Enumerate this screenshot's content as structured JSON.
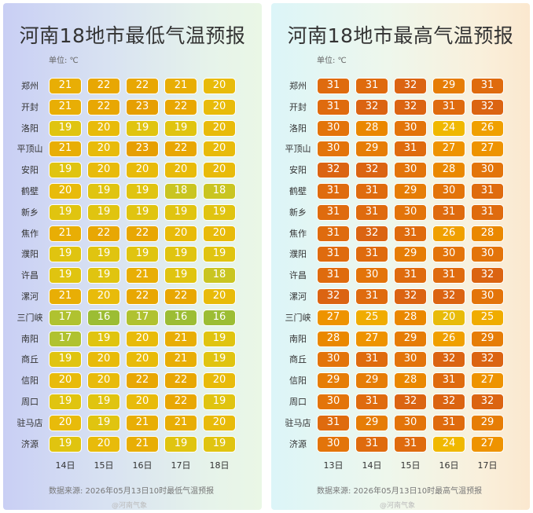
{
  "chart_data": [
    {
      "type": "table",
      "title": "河南18地市最低气温预报",
      "unit_label": "单位: ℃",
      "rows": [
        "郑州",
        "开封",
        "洛阳",
        "平顶山",
        "安阳",
        "鹤壁",
        "新乡",
        "焦作",
        "濮阳",
        "许昌",
        "漯河",
        "三门峡",
        "南阳",
        "商丘",
        "信阳",
        "周口",
        "驻马店",
        "济源"
      ],
      "columns": [
        "14日",
        "15日",
        "16日",
        "17日",
        "18日"
      ],
      "values": [
        [
          21,
          22,
          22,
          21,
          20
        ],
        [
          21,
          22,
          23,
          22,
          20
        ],
        [
          19,
          20,
          19,
          19,
          20
        ],
        [
          21,
          20,
          23,
          22,
          20
        ],
        [
          19,
          20,
          20,
          20,
          20
        ],
        [
          20,
          19,
          19,
          18,
          18
        ],
        [
          19,
          19,
          19,
          19,
          19
        ],
        [
          21,
          22,
          22,
          20,
          20
        ],
        [
          19,
          19,
          19,
          19,
          19
        ],
        [
          19,
          19,
          21,
          19,
          18
        ],
        [
          21,
          20,
          22,
          22,
          20
        ],
        [
          17,
          16,
          17,
          16,
          16
        ],
        [
          17,
          19,
          20,
          21,
          19
        ],
        [
          19,
          20,
          20,
          21,
          19
        ],
        [
          20,
          20,
          22,
          22,
          20
        ],
        [
          19,
          19,
          20,
          22,
          19
        ],
        [
          20,
          19,
          21,
          21,
          20
        ],
        [
          19,
          20,
          21,
          19,
          19
        ]
      ],
      "source": "数据来源: 2026年05月13日10时最低气温预报"
    },
    {
      "type": "table",
      "title": "河南18地市最高气温预报",
      "unit_label": "单位: ℃",
      "rows": [
        "郑州",
        "开封",
        "洛阳",
        "平顶山",
        "安阳",
        "鹤壁",
        "新乡",
        "焦作",
        "濮阳",
        "许昌",
        "漯河",
        "三门峡",
        "南阳",
        "商丘",
        "信阳",
        "周口",
        "驻马店",
        "济源"
      ],
      "columns": [
        "13日",
        "14日",
        "15日",
        "16日",
        "17日"
      ],
      "values": [
        [
          31,
          31,
          32,
          29,
          31
        ],
        [
          31,
          32,
          32,
          31,
          32
        ],
        [
          30,
          28,
          30,
          24,
          26
        ],
        [
          30,
          29,
          31,
          27,
          27
        ],
        [
          32,
          32,
          30,
          28,
          30
        ],
        [
          31,
          31,
          29,
          30,
          31
        ],
        [
          31,
          31,
          30,
          31,
          31
        ],
        [
          31,
          32,
          31,
          26,
          28
        ],
        [
          31,
          31,
          29,
          30,
          30
        ],
        [
          31,
          30,
          31,
          31,
          32
        ],
        [
          32,
          31,
          32,
          32,
          30
        ],
        [
          27,
          25,
          28,
          20,
          25
        ],
        [
          28,
          27,
          29,
          26,
          29
        ],
        [
          30,
          31,
          30,
          32,
          32
        ],
        [
          29,
          29,
          28,
          31,
          27
        ],
        [
          30,
          31,
          32,
          32,
          32
        ],
        [
          31,
          29,
          30,
          31,
          29
        ],
        [
          30,
          31,
          31,
          24,
          27
        ]
      ],
      "source": "数据来源: 2026年05月13日10时最高气温预报"
    }
  ],
  "watermark": "@河南气象",
  "colors": {
    "16": "#9cbd34",
    "17": "#b0c230",
    "18": "#c9c521",
    "19": "#e0c410",
    "20": "#e8bb0a",
    "21": "#e8ae05",
    "22": "#e8a703",
    "23": "#e69f02",
    "24": "#f0b800",
    "25": "#f0ac00",
    "26": "#f0a000",
    "27": "#ee9300",
    "28": "#ea8800",
    "29": "#e67d06",
    "30": "#e3740a",
    "31": "#df6b0e",
    "32": "#db6412"
  }
}
